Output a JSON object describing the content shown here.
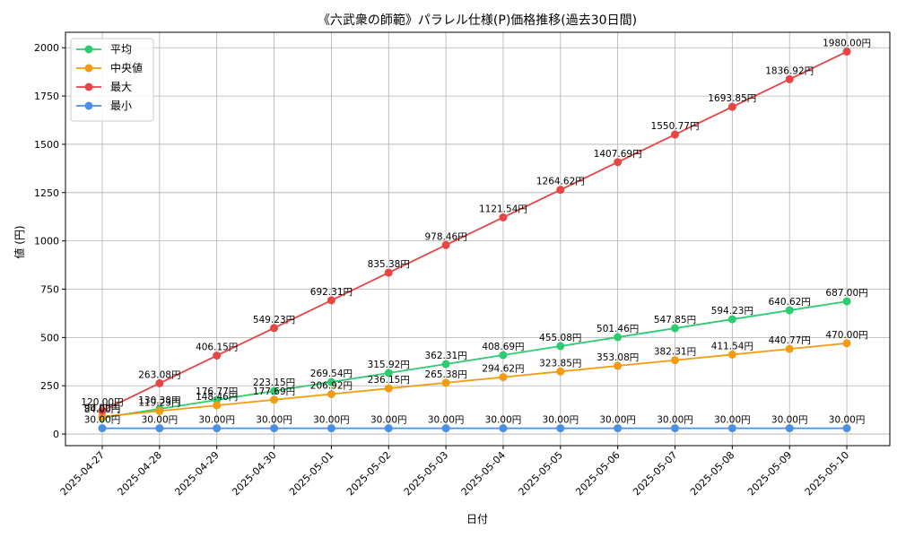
{
  "chart_data": {
    "type": "line",
    "title": "《六武衆の師範》パラレル仕様(P)価格推移(過去30日間)",
    "xlabel": "日付",
    "ylabel": "値 (円)",
    "categories": [
      "2025-04-27",
      "2025-04-28",
      "2025-04-29",
      "2025-04-30",
      "2025-05-01",
      "2025-05-02",
      "2025-05-03",
      "2025-05-04",
      "2025-05-05",
      "2025-05-06",
      "2025-05-07",
      "2025-05-08",
      "2025-05-09",
      "2025-05-10"
    ],
    "ylim": [
      -60,
      2080
    ],
    "yticks": [
      0,
      250,
      500,
      750,
      1000,
      1250,
      1500,
      1750,
      2000
    ],
    "grid": true,
    "legend_position": "top-left",
    "series": [
      {
        "name": "平均",
        "color": "#2ecc71",
        "values": [
          84.0,
          130.38,
          176.77,
          223.15,
          269.54,
          315.92,
          362.31,
          408.69,
          455.08,
          501.46,
          547.85,
          594.23,
          640.62,
          687.0
        ],
        "labels": [
          "84.00円",
          "130.38円",
          "176.77円",
          "223.15円",
          "269.54円",
          "315.92円",
          "362.31円",
          "408.69円",
          "455.08円",
          "501.46円",
          "547.85円",
          "594.23円",
          "640.62円",
          "687.00円"
        ]
      },
      {
        "name": "中央値",
        "color": "#f39c12",
        "values": [
          90.0,
          119.23,
          148.46,
          177.69,
          206.92,
          236.15,
          265.38,
          294.62,
          323.85,
          353.08,
          382.31,
          411.54,
          440.77,
          470.0
        ],
        "labels": [
          "90.00円",
          "119.23円",
          "148.46円",
          "177.69円",
          "206.92円",
          "236.15円",
          "265.38円",
          "294.62円",
          "323.85円",
          "353.08円",
          "382.31円",
          "411.54円",
          "440.77円",
          "470.00円"
        ]
      },
      {
        "name": "最大",
        "color": "#e84545",
        "values": [
          120.0,
          263.08,
          406.15,
          549.23,
          692.31,
          835.38,
          978.46,
          1121.54,
          1264.62,
          1407.69,
          1550.77,
          1693.85,
          1836.92,
          1980.0
        ],
        "labels": [
          "120.00円",
          "263.08円",
          "406.15円",
          "549.23円",
          "692.31円",
          "835.38円",
          "978.46円",
          "1121.54円",
          "1264.62円",
          "1407.69円",
          "1550.77円",
          "1693.85円",
          "1836.92円",
          "1980.00円"
        ]
      },
      {
        "name": "最小",
        "color": "#4a90e2",
        "values": [
          30,
          30,
          30,
          30,
          30,
          30,
          30,
          30,
          30,
          30,
          30,
          30,
          30,
          30
        ],
        "labels": [
          "30.00円",
          "30.00円",
          "30.00円",
          "30.00円",
          "30.00円",
          "30.00円",
          "30.00円",
          "30.00円",
          "30.00円",
          "30.00円",
          "30.00円",
          "30.00円",
          "30.00円",
          "30.00円"
        ]
      }
    ]
  }
}
